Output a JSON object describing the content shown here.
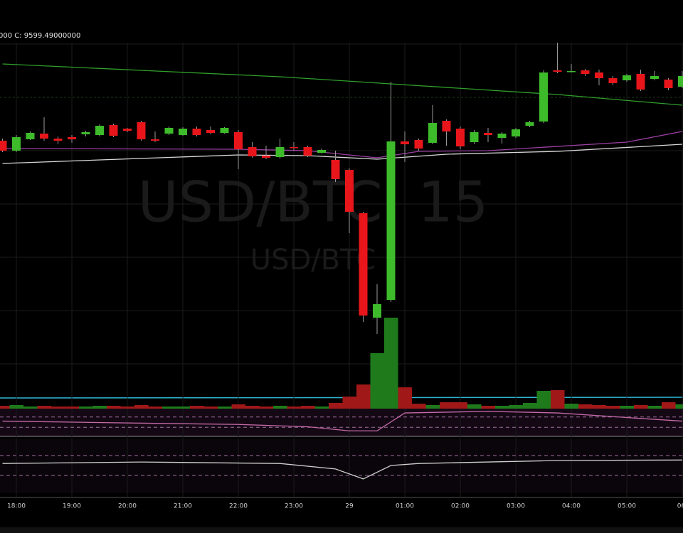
{
  "chart_data": {
    "type": "candlestick",
    "legend_text": "000 C: 9599.49000000",
    "watermark": [
      "USD/BTC, 15",
      "USD/BTC"
    ],
    "categories": [
      null,
      "18:00",
      null,
      null,
      null,
      "19:00",
      null,
      null,
      null,
      "20:00",
      null,
      null,
      null,
      "21:00",
      null,
      null,
      null,
      "22:00",
      null,
      null,
      null,
      "23:00",
      null,
      null,
      null,
      "29",
      null,
      null,
      null,
      "01:00",
      null,
      null,
      null,
      "02:00",
      null,
      null,
      null,
      "03:00",
      null,
      null,
      null,
      "04:00",
      null,
      null,
      null,
      "05:00",
      null,
      null,
      null,
      "06:"
    ],
    "open": [
      9433,
      9405,
      9437,
      9453,
      9439,
      9443,
      9451,
      9449,
      9477,
      9467,
      9485,
      9437,
      9453,
      9449,
      9467,
      9463,
      9455,
      9457,
      9415,
      9391,
      9387,
      9415,
      9415,
      9399,
      9379,
      9351,
      9229,
      8935,
      8985,
      9431,
      9435,
      9427,
      9489,
      9467,
      9429,
      9455,
      9441,
      9445,
      9475,
      9487,
      9631,
      9627,
      9631,
      9625,
      9609,
      9603,
      9621,
      9607,
      9605,
      9585
    ],
    "high": [
      9439,
      9449,
      9459,
      9499,
      9445,
      9449,
      9461,
      9479,
      9481,
      9469,
      9489,
      9459,
      9473,
      9471,
      9473,
      9473,
      9471,
      9463,
      9429,
      9419,
      9439,
      9429,
      9419,
      9411,
      9405,
      9355,
      9233,
      9029,
      9599,
      9459,
      9439,
      9533,
      9493,
      9473,
      9463,
      9469,
      9457,
      9469,
      9489,
      9631,
      9709,
      9649,
      9635,
      9633,
      9615,
      9621,
      9633,
      9629,
      9609,
      9629
    ],
    "low": [
      9401,
      9401,
      9435,
      9433,
      9423,
      9427,
      9445,
      9445,
      9443,
      9457,
      9433,
      9429,
      9449,
      9447,
      9445,
      9451,
      9453,
      9353,
      9385,
      9381,
      9383,
      9405,
      9387,
      9397,
      9317,
      9173,
      8923,
      8889,
      8979,
      9373,
      9405,
      9423,
      9419,
      9409,
      9423,
      9429,
      9425,
      9441,
      9471,
      9483,
      9623,
      9625,
      9615,
      9589,
      9589,
      9599,
      9573,
      9603,
      9575,
      9581
    ],
    "close": [
      9405,
      9443,
      9455,
      9439,
      9433,
      9437,
      9457,
      9475,
      9447,
      9461,
      9437,
      9433,
      9469,
      9467,
      9449,
      9455,
      9469,
      9409,
      9389,
      9385,
      9415,
      9413,
      9391,
      9407,
      9325,
      9233,
      8941,
      8973,
      9431,
      9423,
      9411,
      9483,
      9459,
      9417,
      9457,
      9449,
      9453,
      9465,
      9485,
      9625,
      9627,
      9629,
      9621,
      9609,
      9595,
      9617,
      9577,
      9615,
      9581,
      9615
    ],
    "volume": [
      40,
      50,
      30,
      40,
      30,
      30,
      30,
      40,
      40,
      30,
      50,
      30,
      30,
      30,
      40,
      30,
      30,
      60,
      40,
      30,
      40,
      30,
      40,
      30,
      80,
      170,
      340,
      780,
      1280,
      300,
      70,
      50,
      90,
      90,
      60,
      40,
      40,
      50,
      80,
      250,
      260,
      70,
      60,
      50,
      40,
      40,
      50,
      40,
      90,
      60
    ],
    "up_color": "#3dbb2a",
    "down_color": "#e8161b",
    "volume_up_color": "#1f7a1c",
    "volume_down_color": "#a01818",
    "ylim": [
      8709,
      9709
    ],
    "volume_ylim": [
      0,
      1500
    ],
    "overlays": [
      {
        "color": "#2f9e2a",
        "x": [
          0,
          20,
          40,
          49
        ],
        "values": [
          9649,
          9613,
          9563,
          9533
        ]
      },
      {
        "color": "#9b3fa3",
        "x": [
          0,
          17,
          22,
          27,
          30,
          35,
          45,
          49
        ],
        "values": [
          9411,
          9409,
          9405,
          9385,
          9403,
          9405,
          9429,
          9459
        ]
      },
      {
        "color": "#d8d8d8",
        "x": [
          0,
          17,
          22,
          27,
          32,
          40,
          49
        ],
        "values": [
          9369,
          9393,
          9391,
          9381,
          9395,
          9403,
          9423
        ]
      }
    ],
    "oscillators": [
      {
        "color": "#c36aa8",
        "ylim": [
          0,
          100
        ],
        "levels": [
          70,
          30
        ],
        "x": [
          0,
          10,
          17,
          22,
          25,
          27,
          29,
          35,
          40,
          45,
          49
        ],
        "values": [
          54,
          46,
          41,
          32,
          16,
          16,
          86,
          92,
          86,
          68,
          54
        ]
      },
      {
        "color": "#cfcfcf",
        "ylim": [
          0,
          100
        ],
        "levels": [
          70,
          30
        ],
        "x": [
          0,
          10,
          20,
          24,
          26,
          28,
          30,
          40,
          49
        ],
        "values": [
          54,
          57,
          54,
          43,
          23,
          50,
          54,
          60,
          61
        ]
      }
    ]
  }
}
